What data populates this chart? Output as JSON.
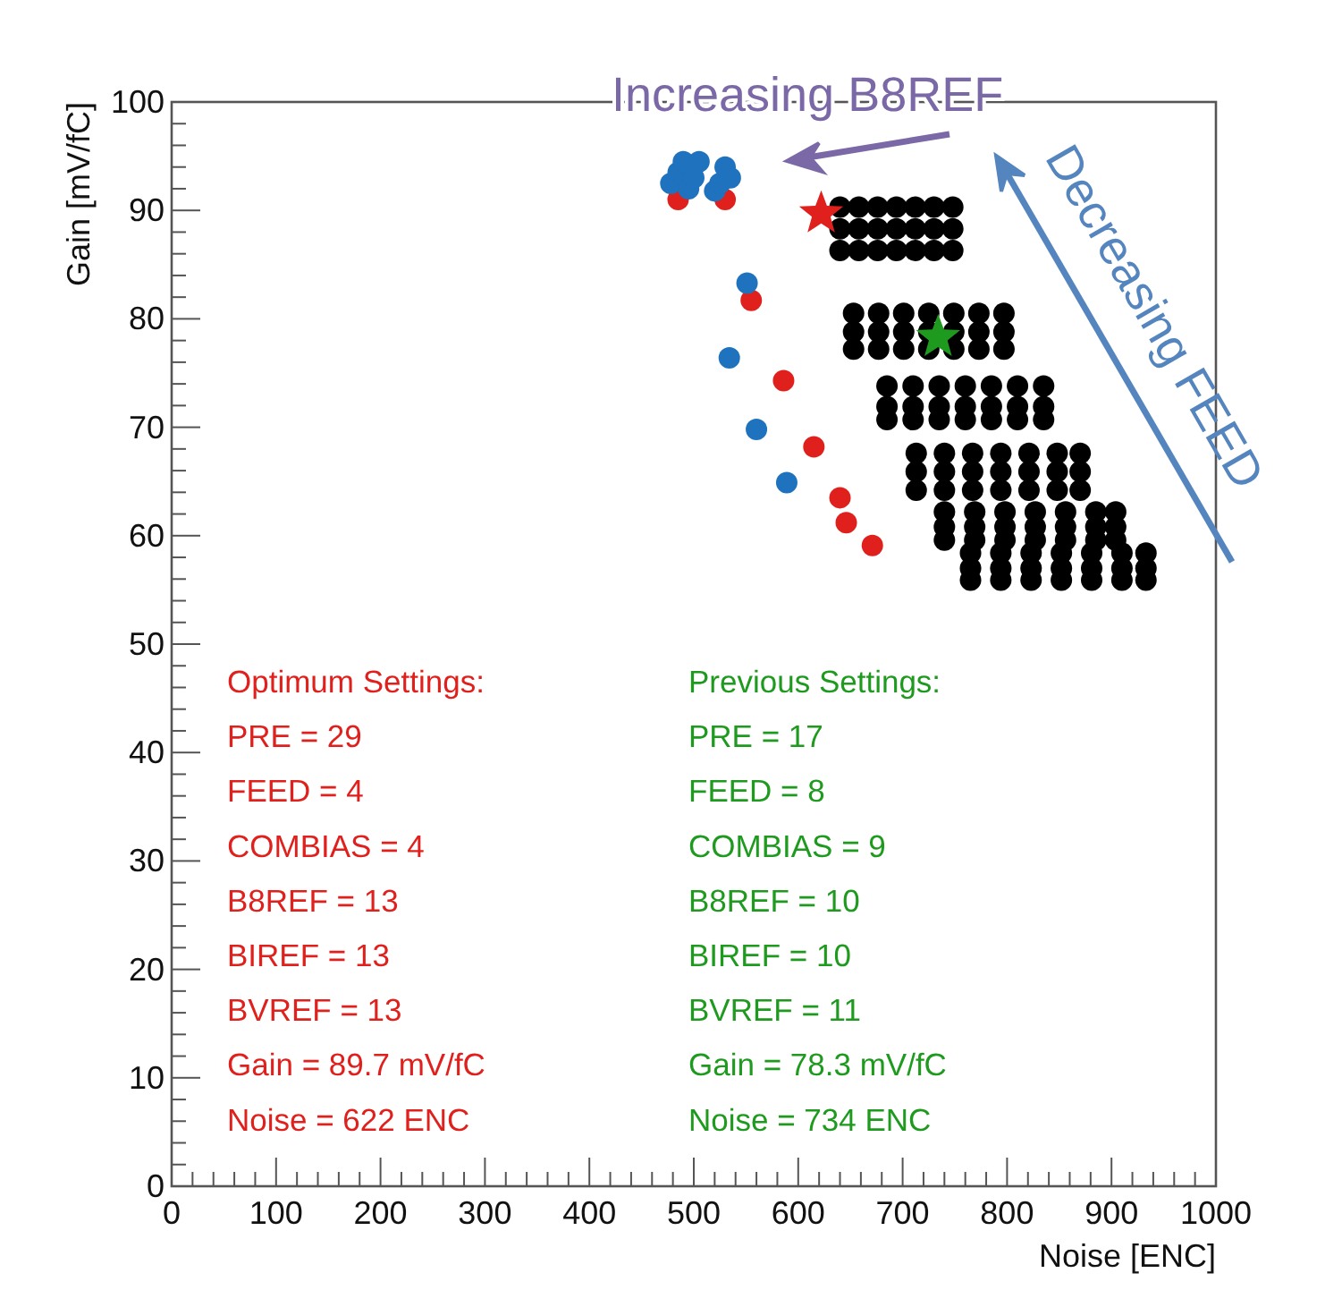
{
  "chart_data": {
    "type": "scatter",
    "xlabel": "Noise [ENC]",
    "ylabel": "Gain [mV/fC]",
    "xlim": [
      0,
      1000
    ],
    "ylim": [
      0,
      100
    ],
    "xticks": [
      0,
      100,
      200,
      300,
      400,
      500,
      600,
      700,
      800,
      900,
      1000
    ],
    "yticks": [
      0,
      10,
      20,
      30,
      40,
      50,
      60,
      70,
      80,
      90,
      100
    ],
    "grid": false,
    "marker": "circle",
    "series": [
      {
        "color": "#000000",
        "x": [
          640,
          658,
          676,
          694,
          712,
          730,
          748,
          640,
          658,
          676,
          694,
          712,
          730,
          748,
          640,
          658,
          676,
          694,
          712,
          730,
          748,
          653,
          677,
          701,
          725,
          749,
          773,
          797,
          653,
          677,
          701,
          725,
          749,
          773,
          797,
          653,
          677,
          701,
          725,
          749,
          773,
          797,
          685,
          710,
          735,
          760,
          785,
          810,
          835,
          685,
          710,
          735,
          760,
          785,
          810,
          835,
          685,
          710,
          735,
          760,
          785,
          810,
          835,
          713,
          740,
          767,
          794,
          821,
          848,
          870,
          713,
          740,
          767,
          794,
          821,
          848,
          870,
          713,
          740,
          767,
          794,
          821,
          848,
          870,
          740,
          769,
          798,
          827,
          856,
          885,
          904,
          740,
          769,
          798,
          827,
          856,
          885,
          904,
          740,
          769,
          798,
          827,
          856,
          885,
          904,
          765,
          794,
          823,
          852,
          881,
          910,
          933,
          765,
          794,
          823,
          852,
          881,
          910,
          933,
          765,
          794,
          823,
          852,
          881,
          910,
          933
        ],
        "values": [
          90.3,
          90.3,
          90.3,
          90.3,
          90.3,
          90.3,
          90.3,
          88.3,
          88.3,
          88.3,
          88.3,
          88.3,
          88.3,
          88.3,
          86.3,
          86.3,
          86.3,
          86.3,
          86.3,
          86.3,
          86.3,
          80.5,
          80.5,
          80.5,
          80.5,
          80.5,
          80.5,
          80.5,
          78.8,
          78.8,
          78.8,
          78.8,
          78.8,
          78.8,
          78.8,
          77.2,
          77.2,
          77.2,
          77.2,
          77.2,
          77.2,
          77.2,
          73.8,
          73.8,
          73.8,
          73.8,
          73.8,
          73.8,
          73.8,
          71.9,
          71.9,
          71.9,
          71.9,
          71.9,
          71.9,
          71.9,
          70.7,
          70.7,
          70.7,
          70.7,
          70.7,
          70.7,
          70.7,
          67.6,
          67.6,
          67.6,
          67.6,
          67.6,
          67.6,
          67.6,
          65.9,
          65.9,
          65.9,
          65.9,
          65.9,
          65.9,
          65.9,
          64.2,
          64.2,
          64.2,
          64.2,
          64.2,
          64.2,
          64.2,
          62.2,
          62.2,
          62.2,
          62.2,
          62.2,
          62.2,
          62.2,
          60.8,
          60.8,
          60.8,
          60.8,
          60.8,
          60.8,
          60.8,
          59.6,
          59.6,
          59.6,
          59.6,
          59.6,
          59.6,
          59.6,
          58.4,
          58.4,
          58.4,
          58.4,
          58.4,
          58.4,
          58.4,
          57,
          57,
          57,
          57,
          57,
          57,
          57,
          55.9,
          55.9,
          55.9,
          55.9,
          55.9,
          55.9,
          55.9
        ]
      },
      {
        "color": "#e0201c",
        "x": [
          485,
          530,
          555,
          586,
          615,
          640,
          646,
          671
        ],
        "values": [
          91,
          91,
          81.7,
          74.3,
          68.2,
          63.5,
          61.2,
          59.1
        ]
      },
      {
        "color": "#1f72bd",
        "x": [
          478,
          485,
          490,
          495,
          500,
          505,
          520,
          525,
          530,
          535,
          551,
          534,
          560,
          589
        ],
        "values": [
          92.5,
          93.5,
          94.5,
          92,
          93,
          94.5,
          91.8,
          92.5,
          94,
          93,
          83.3,
          76.4,
          69.8,
          64.9
        ]
      },
      {
        "color": "#e0201c",
        "marker": "star",
        "x": [
          622
        ],
        "values": [
          89.7
        ]
      },
      {
        "color": "#1e9a1e",
        "marker": "star",
        "x": [
          734
        ],
        "values": [
          78.3
        ]
      }
    ],
    "annotations": [
      "Optimum Settings:",
      "PRE = 29",
      "FEED = 4",
      "COMBIAS = 4",
      "B8REF = 13",
      "BIREF = 13",
      "BVREF = 13",
      "Gain = 89.7 mV/fC",
      "Noise = 622 ENC",
      "Previous Settings:",
      "PRE = 17",
      "FEED = 8",
      "COMBIAS = 9",
      "B8REF = 10",
      "BIREF = 10",
      "BVREF = 11",
      "Gain = 78.3 mV/fC",
      "Noise = 734 ENC",
      "Increasing B8REF",
      "Decreasing FEED"
    ]
  }
}
